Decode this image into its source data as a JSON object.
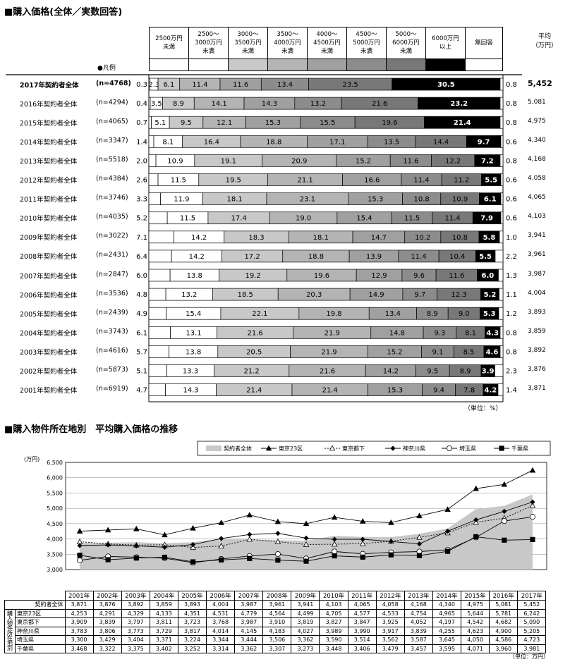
{
  "section1": {
    "title": "■購入価格(全体／実数回答)",
    "headers": [
      "2500万円\n未満",
      "2500～\n3000万円\n未満",
      "3000～\n3500万円\n未満",
      "3500～\n4000万円\n未満",
      "4000～\n4500万円\n未満",
      "4500～\n5000万円\n未満",
      "5000～\n6000万円\n未満",
      "6000万円\n以上",
      "無回答"
    ],
    "legend_label": "●凡例",
    "avg_header": "平均\n（万円）",
    "unit_note": "（単位：%）"
  },
  "section2": {
    "title": "■購入物件所在地別　平均購入価格の推移",
    "unit_note": "（単位：万円）",
    "y_unit": "(万円)"
  },
  "chart_data": [
    {
      "type": "bar",
      "stacked": true,
      "orientation": "horizontal",
      "categories": [
        "2500万円未満",
        "2500～3000万円未満",
        "3000～3500万円未満",
        "3500～4000万円未満",
        "4000～4500万円未満",
        "4500～5000万円未満",
        "5000～6000万円未満",
        "6000万円以上",
        "無回答"
      ],
      "colors": [
        "#ffffff",
        "#ffffff",
        "#c8c8c8",
        "#b4b4b4",
        "#a0a0a0",
        "#8c8c8c",
        "#787878",
        "#000000",
        "#ffffff"
      ],
      "rows": [
        {
          "label": "2017年契約者全体",
          "n": "(n=4768)",
          "values": [
            0.3,
            2.3,
            6.1,
            11.4,
            11.6,
            13.4,
            23.5,
            30.5,
            0.8
          ],
          "avg": "5,452",
          "bold": true
        },
        {
          "label": "2016年契約者全体",
          "n": "(n=4294)",
          "values": [
            0.4,
            3.5,
            8.9,
            14.1,
            14.3,
            13.2,
            21.6,
            23.2,
            0.8
          ],
          "avg": "5,081"
        },
        {
          "label": "2015年契約者全体",
          "n": "(n=4065)",
          "values": [
            0.7,
            5.1,
            9.5,
            12.1,
            15.3,
            15.5,
            19.6,
            21.4,
            0.8
          ],
          "avg": "4,975"
        },
        {
          "label": "2014年契約者全体",
          "n": "(n=3347)",
          "values": [
            1.4,
            8.1,
            16.4,
            18.8,
            17.1,
            13.5,
            14.4,
            9.7,
            0.6
          ],
          "avg": "4,340"
        },
        {
          "label": "2013年契約者全体",
          "n": "(n=5518)",
          "values": [
            2.0,
            10.9,
            19.1,
            20.9,
            15.2,
            11.6,
            12.2,
            7.2,
            0.8
          ],
          "avg": "4,168"
        },
        {
          "label": "2012年契約者全体",
          "n": "(n=4384)",
          "values": [
            2.6,
            11.5,
            19.5,
            21.1,
            16.6,
            11.4,
            11.2,
            5.5,
            0.6
          ],
          "avg": "4,058"
        },
        {
          "label": "2011年契約者全体",
          "n": "(n=3746)",
          "values": [
            3.3,
            11.9,
            18.1,
            23.1,
            15.3,
            10.8,
            10.9,
            6.1,
            0.6
          ],
          "avg": "4,065"
        },
        {
          "label": "2010年契約者全体",
          "n": "(n=4035)",
          "values": [
            5.2,
            11.5,
            17.4,
            19.0,
            15.4,
            11.5,
            11.4,
            7.9,
            0.6
          ],
          "avg": "4,103"
        },
        {
          "label": "2009年契約者全体",
          "n": "(n=3022)",
          "values": [
            7.1,
            14.2,
            18.3,
            18.1,
            14.7,
            10.2,
            10.8,
            5.8,
            1.0
          ],
          "avg": "3,941"
        },
        {
          "label": "2008年契約者全体",
          "n": "(n=2431)",
          "values": [
            6.4,
            14.2,
            17.2,
            18.8,
            13.9,
            11.4,
            10.4,
            5.5,
            2.2
          ],
          "avg": "3,961"
        },
        {
          "label": "2007年契約者全体",
          "n": "(n=2847)",
          "values": [
            6.0,
            13.8,
            19.2,
            19.6,
            12.9,
            9.6,
            11.6,
            6.0,
            1.3
          ],
          "avg": "3,987"
        },
        {
          "label": "2006年契約者全体",
          "n": "(n=3536)",
          "values": [
            4.8,
            13.2,
            18.5,
            20.3,
            14.9,
            9.7,
            12.3,
            5.2,
            1.1
          ],
          "avg": "4,004"
        },
        {
          "label": "2005年契約者全体",
          "n": "(n=2439)",
          "values": [
            4.9,
            15.4,
            22.1,
            19.8,
            13.4,
            8.9,
            9.0,
            5.3,
            1.2
          ],
          "avg": "3,893"
        },
        {
          "label": "2004年契約者全体",
          "n": "(n=3743)",
          "values": [
            6.1,
            13.1,
            21.6,
            21.9,
            14.8,
            9.3,
            8.1,
            4.3,
            0.8
          ],
          "avg": "3,859"
        },
        {
          "label": "2003年契約者全体",
          "n": "(n=4616)",
          "values": [
            5.7,
            13.8,
            20.5,
            21.9,
            15.2,
            9.1,
            8.5,
            4.6,
            0.8
          ],
          "avg": "3,892"
        },
        {
          "label": "2002年契約者全体",
          "n": "(n=5873)",
          "values": [
            5.1,
            13.3,
            21.2,
            21.6,
            14.2,
            9.5,
            8.9,
            3.9,
            2.3
          ],
          "avg": "3,876"
        },
        {
          "label": "2001年契約者全体",
          "n": "(n=6919)",
          "values": [
            4.7,
            14.3,
            21.4,
            21.4,
            15.3,
            9.4,
            7.8,
            4.2,
            1.4
          ],
          "avg": "3,871"
        }
      ]
    },
    {
      "type": "line",
      "x": [
        "2001年",
        "2002年",
        "2003年",
        "2004年",
        "2005年",
        "2006年",
        "2007年",
        "2008年",
        "2009年",
        "2010年",
        "2011年",
        "2012年",
        "2013年",
        "2014年",
        "2015年",
        "2016年",
        "2017年"
      ],
      "ylim": [
        3000,
        6500
      ],
      "yticks": [
        "3,000",
        "3,500",
        "4,000",
        "4,500",
        "5,000",
        "5,500",
        "6,000",
        "6,500"
      ],
      "series": [
        {
          "name": "契約者全体",
          "style": "area",
          "values": [
            3871,
            3876,
            3892,
            3859,
            3893,
            4004,
            3987,
            3961,
            3941,
            4103,
            4065,
            4058,
            4168,
            4340,
            4975,
            5081,
            5452
          ]
        },
        {
          "name": "東京23区",
          "style": "triangle-solid",
          "values": [
            4253,
            4291,
            4329,
            4133,
            4351,
            4531,
            4779,
            4564,
            4499,
            4705,
            4577,
            4533,
            4754,
            4965,
            5644,
            5781,
            6242
          ]
        },
        {
          "name": "東京都下",
          "style": "triangle-dash",
          "values": [
            3909,
            3839,
            3797,
            3811,
            3723,
            3768,
            3987,
            3910,
            3819,
            3827,
            3847,
            3925,
            4052,
            4197,
            4542,
            4682,
            5090
          ]
        },
        {
          "name": "神奈川県",
          "style": "diamond-solid",
          "values": [
            3783,
            3806,
            3773,
            3729,
            3817,
            4014,
            4145,
            4183,
            4027,
            3989,
            3990,
            3917,
            3839,
            4255,
            4623,
            4900,
            5205
          ]
        },
        {
          "name": "埼玉県",
          "style": "circle-open",
          "values": [
            3300,
            3429,
            3404,
            3371,
            3224,
            3344,
            3444,
            3506,
            3362,
            3590,
            3514,
            3562,
            3587,
            3645,
            4050,
            4586,
            4723
          ]
        },
        {
          "name": "千葉県",
          "style": "square-solid",
          "values": [
            3468,
            3322,
            3375,
            3402,
            3252,
            3314,
            3362,
            3307,
            3273,
            3448,
            3406,
            3479,
            3457,
            3595,
            4071,
            3960,
            3981
          ]
        }
      ]
    }
  ],
  "table": {
    "side_label": [
      "購",
      "入",
      "物",
      "件",
      "所",
      "在",
      "地",
      "別"
    ],
    "rows": [
      {
        "label": "契約者全体",
        "values": [
          "3,871",
          "3,876",
          "3,892",
          "3,859",
          "3,893",
          "4,004",
          "3,987",
          "3,961",
          "3,941",
          "4,103",
          "4,065",
          "4,058",
          "4,168",
          "4,340",
          "4,975",
          "5,081",
          "5,452"
        ]
      },
      {
        "label": "東京23区",
        "values": [
          "4,253",
          "4,291",
          "4,329",
          "4,133",
          "4,351",
          "4,531",
          "4,779",
          "4,564",
          "4,499",
          "4,705",
          "4,577",
          "4,533",
          "4,754",
          "4,965",
          "5,644",
          "5,781",
          "6,242"
        ]
      },
      {
        "label": "東京都下",
        "values": [
          "3,909",
          "3,839",
          "3,797",
          "3,811",
          "3,723",
          "3,768",
          "3,987",
          "3,910",
          "3,819",
          "3,827",
          "3,847",
          "3,925",
          "4,052",
          "4,197",
          "4,542",
          "4,682",
          "5,090"
        ]
      },
      {
        "label": "神奈川県",
        "values": [
          "3,783",
          "3,806",
          "3,773",
          "3,729",
          "3,817",
          "4,014",
          "4,145",
          "4,183",
          "4,027",
          "3,989",
          "3,990",
          "3,917",
          "3,839",
          "4,255",
          "4,623",
          "4,900",
          "5,205"
        ]
      },
      {
        "label": "埼玉県",
        "values": [
          "3,300",
          "3,429",
          "3,404",
          "3,371",
          "3,224",
          "3,344",
          "3,444",
          "3,506",
          "3,362",
          "3,590",
          "3,514",
          "3,562",
          "3,587",
          "3,645",
          "4,050",
          "4,586",
          "4,723"
        ]
      },
      {
        "label": "千葉県",
        "values": [
          "3,468",
          "3,322",
          "3,375",
          "3,402",
          "3,252",
          "3,314",
          "3,362",
          "3,307",
          "3,273",
          "3,448",
          "3,406",
          "3,479",
          "3,457",
          "3,595",
          "4,071",
          "3,960",
          "3,981"
        ]
      }
    ]
  }
}
